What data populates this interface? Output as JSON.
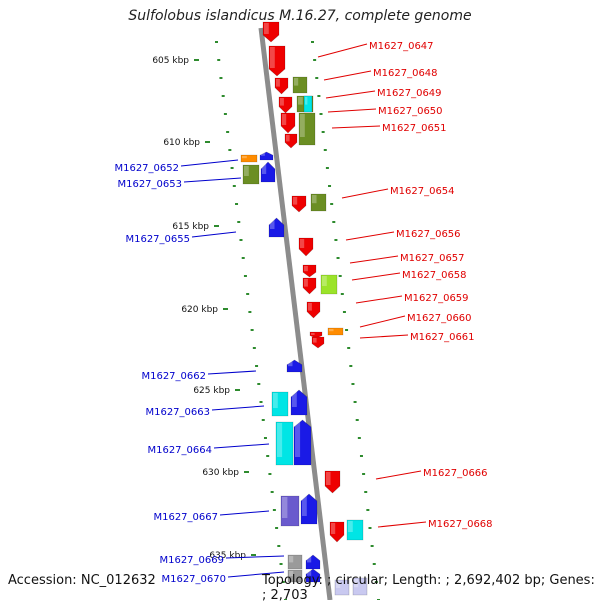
{
  "title": "Sulfolobus islandicus M.16.27, complete genome",
  "footer": {
    "accession_label": "Accession:",
    "accession": "NC_012632",
    "topology_label": "Topology:",
    "topology": "circular",
    "length_label": "Length:",
    "length": "2,692,402 bp",
    "genes_label": "Genes:",
    "genes": "2,703"
  },
  "colors": {
    "forward_label": "#e00000",
    "reverse_label": "#0000cc",
    "red": "#ee0000",
    "blue": "#1a1ae6",
    "cyan": "#00e5e5",
    "olive": "#6b8e23",
    "lime": "#9be32a",
    "orange": "#ff8c00",
    "purple": "#6a5acd",
    "gray": "#9a9a9a",
    "lavender": "#c9c9f0",
    "tick": "#2e8b2e",
    "backbone": "#8c8c8c"
  },
  "ruler": {
    "ticks": [
      "605 kbp",
      "610 kbp",
      "615 kbp",
      "620 kbp",
      "625 kbp",
      "630 kbp",
      "635 kbp"
    ]
  },
  "forward_labels": [
    "M1627_0647",
    "M1627_0648",
    "M1627_0649",
    "M1627_0650",
    "M1627_0651",
    "M1627_0654",
    "M1627_0656",
    "M1627_0657",
    "M1627_0658",
    "M1627_0659",
    "M1627_0660",
    "M1627_0661",
    "M1627_0666",
    "M1627_0668"
  ],
  "reverse_labels": [
    "M1627_0652",
    "M1627_0653",
    "M1627_0655",
    "M1627_0662",
    "M1627_0663",
    "M1627_0664",
    "M1627_0667",
    "M1627_0669",
    "M1627_0670"
  ]
}
